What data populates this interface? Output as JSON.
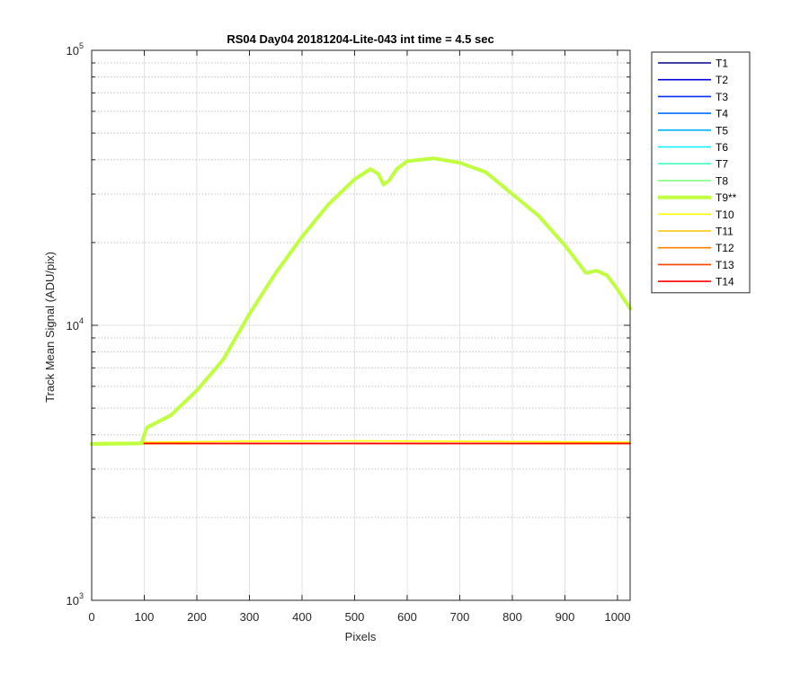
{
  "chart_data": {
    "type": "line",
    "title": "RS04 Day04 20181204-Lite-043 int time = 4.5 sec",
    "xlabel": "Pixels",
    "ylabel": "Track Mean Signal (ADU/pix)",
    "xlim": [
      0,
      1024
    ],
    "ylim": [
      1000,
      100000
    ],
    "yscale": "log",
    "grid": true,
    "legend_position": "outside-top-right",
    "x_ticks": [
      0,
      100,
      200,
      300,
      400,
      500,
      600,
      700,
      800,
      900,
      1000
    ],
    "x_tick_labels": [
      "0",
      "100",
      "200",
      "300",
      "400",
      "500",
      "600",
      "700",
      "800",
      "900",
      "1000"
    ],
    "y_ticks": [
      {
        "value": 1000,
        "base": "10",
        "exp": "3"
      },
      {
        "value": 10000,
        "base": "10",
        "exp": "4"
      },
      {
        "value": 100000,
        "base": "10",
        "exp": "5"
      }
    ],
    "series": [
      {
        "name": "T1",
        "color": "#00008f",
        "highlight": false,
        "values": [
          [
            0,
            3720
          ],
          [
            1024,
            3720
          ]
        ]
      },
      {
        "name": "T2",
        "color": "#0000df",
        "highlight": false,
        "values": [
          [
            0,
            3720
          ],
          [
            1024,
            3720
          ]
        ]
      },
      {
        "name": "T3",
        "color": "#0030ff",
        "highlight": false,
        "values": [
          [
            0,
            3720
          ],
          [
            1024,
            3720
          ]
        ]
      },
      {
        "name": "T4",
        "color": "#0070ff",
        "highlight": false,
        "values": [
          [
            0,
            3720
          ],
          [
            1024,
            3720
          ]
        ]
      },
      {
        "name": "T5",
        "color": "#00b0ff",
        "highlight": false,
        "values": [
          [
            0,
            3720
          ],
          [
            1024,
            3720
          ]
        ]
      },
      {
        "name": "T6",
        "color": "#00efff",
        "highlight": false,
        "values": [
          [
            0,
            3720
          ],
          [
            1024,
            3720
          ]
        ]
      },
      {
        "name": "T7",
        "color": "#40ffbf",
        "highlight": false,
        "values": [
          [
            0,
            3720
          ],
          [
            1024,
            3720
          ]
        ]
      },
      {
        "name": "T8",
        "color": "#80ff80",
        "highlight": false,
        "values": [
          [
            0,
            3720
          ],
          [
            1024,
            3720
          ]
        ]
      },
      {
        "name": "T9**",
        "color": "#bfff40",
        "highlight": true,
        "values": [
          [
            0,
            3700
          ],
          [
            40,
            3710
          ],
          [
            95,
            3720
          ],
          [
            100,
            4000
          ],
          [
            105,
            4250
          ],
          [
            150,
            4700
          ],
          [
            200,
            5800
          ],
          [
            250,
            7500
          ],
          [
            300,
            11000
          ],
          [
            350,
            15500
          ],
          [
            400,
            21000
          ],
          [
            450,
            27500
          ],
          [
            500,
            34000
          ],
          [
            530,
            37000
          ],
          [
            545,
            35500
          ],
          [
            555,
            32500
          ],
          [
            565,
            33500
          ],
          [
            580,
            37000
          ],
          [
            600,
            39500
          ],
          [
            650,
            40500
          ],
          [
            700,
            39000
          ],
          [
            750,
            36000
          ],
          [
            800,
            30000
          ],
          [
            850,
            25000
          ],
          [
            900,
            19500
          ],
          [
            940,
            15500
          ],
          [
            960,
            15800
          ],
          [
            980,
            15200
          ],
          [
            1000,
            13500
          ],
          [
            1024,
            11500
          ]
        ]
      },
      {
        "name": "T10",
        "color": "#ffff00",
        "highlight": false,
        "values": [
          [
            0,
            3740
          ],
          [
            300,
            3790
          ],
          [
            500,
            3800
          ],
          [
            800,
            3780
          ],
          [
            1024,
            3760
          ]
        ]
      },
      {
        "name": "T11",
        "color": "#ffc000",
        "highlight": false,
        "values": [
          [
            0,
            3720
          ],
          [
            1024,
            3720
          ]
        ]
      },
      {
        "name": "T12",
        "color": "#ff8000",
        "highlight": false,
        "values": [
          [
            0,
            3720
          ],
          [
            1024,
            3720
          ]
        ]
      },
      {
        "name": "T13",
        "color": "#ff4000",
        "highlight": false,
        "values": [
          [
            0,
            3720
          ],
          [
            1024,
            3720
          ]
        ]
      },
      {
        "name": "T14",
        "color": "#ff0000",
        "highlight": false,
        "values": [
          [
            0,
            3720
          ],
          [
            1024,
            3720
          ]
        ]
      }
    ]
  }
}
